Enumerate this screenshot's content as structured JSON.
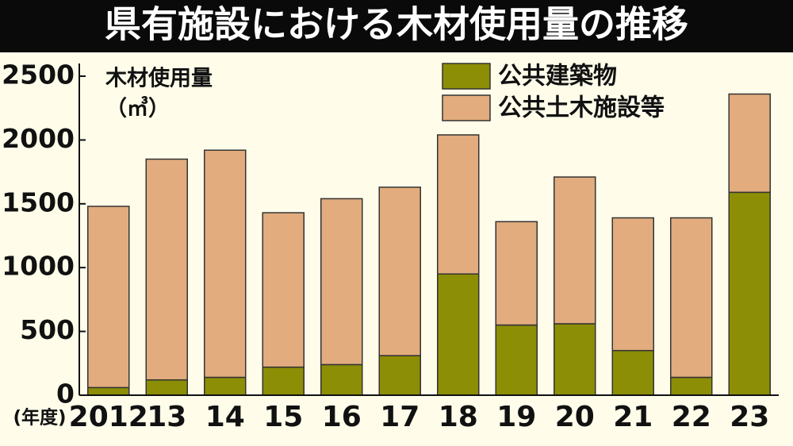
{
  "chart_data": {
    "type": "stacked-bar",
    "title": "県有施設における木材使用量の推移",
    "ylabel": "木材使用量",
    "yunit": "（㎥）",
    "xlabel": "(年度)",
    "categories": [
      "2012",
      "13",
      "14",
      "15",
      "16",
      "17",
      "18",
      "19",
      "20",
      "21",
      "22",
      "23"
    ],
    "series": [
      {
        "name": "公共建築物",
        "color": "#8c8e06",
        "values": [
          60,
          120,
          140,
          220,
          240,
          310,
          950,
          550,
          560,
          350,
          140,
          1590
        ]
      },
      {
        "name": "公共土木施設等",
        "color": "#e2ac7e",
        "values": [
          1420,
          1730,
          1780,
          1210,
          1300,
          1320,
          1090,
          810,
          1150,
          1040,
          1250,
          770
        ]
      }
    ],
    "ylim": [
      0,
      2500
    ],
    "yticks": [
      0,
      500,
      1000,
      1500,
      2000,
      2500
    ]
  }
}
